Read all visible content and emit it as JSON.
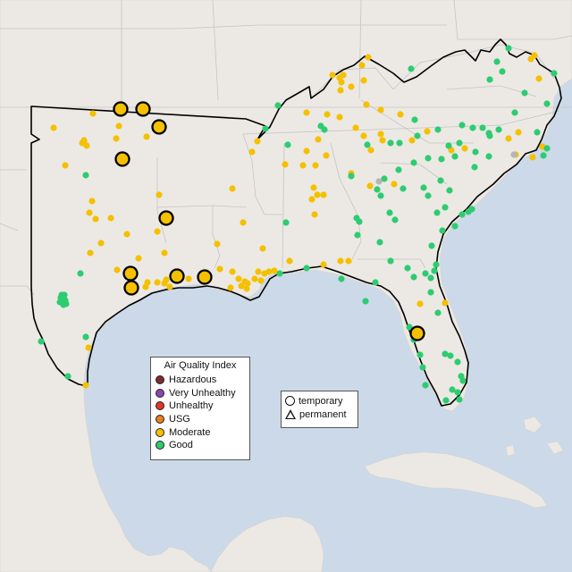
{
  "legend": {
    "title": "Air Quality Index",
    "categories": [
      {
        "label": "Hazardous",
        "color": "#7e2c2c"
      },
      {
        "label": "Very Unhealthy",
        "color": "#8e44ad"
      },
      {
        "label": "Unhealthy",
        "color": "#e0362c"
      },
      {
        "label": "USG",
        "color": "#e67e22"
      },
      {
        "label": "Moderate",
        "color": "#f5c000"
      },
      {
        "label": "Good",
        "color": "#2ecc71"
      }
    ],
    "monitor_types": [
      {
        "label": "temporary",
        "icon": "circle-icon"
      },
      {
        "label": "permanent",
        "icon": "triangle-icon"
      }
    ]
  },
  "map": {
    "region": "Southeastern United States",
    "highlighted_area": "Oklahoma, Texas, and states east to the Atlantic coast",
    "colors": {
      "water": "#ccd9e8",
      "land": "#ece9e4",
      "outline": "#000000",
      "state_lines": "#c4c4c4"
    }
  }
}
